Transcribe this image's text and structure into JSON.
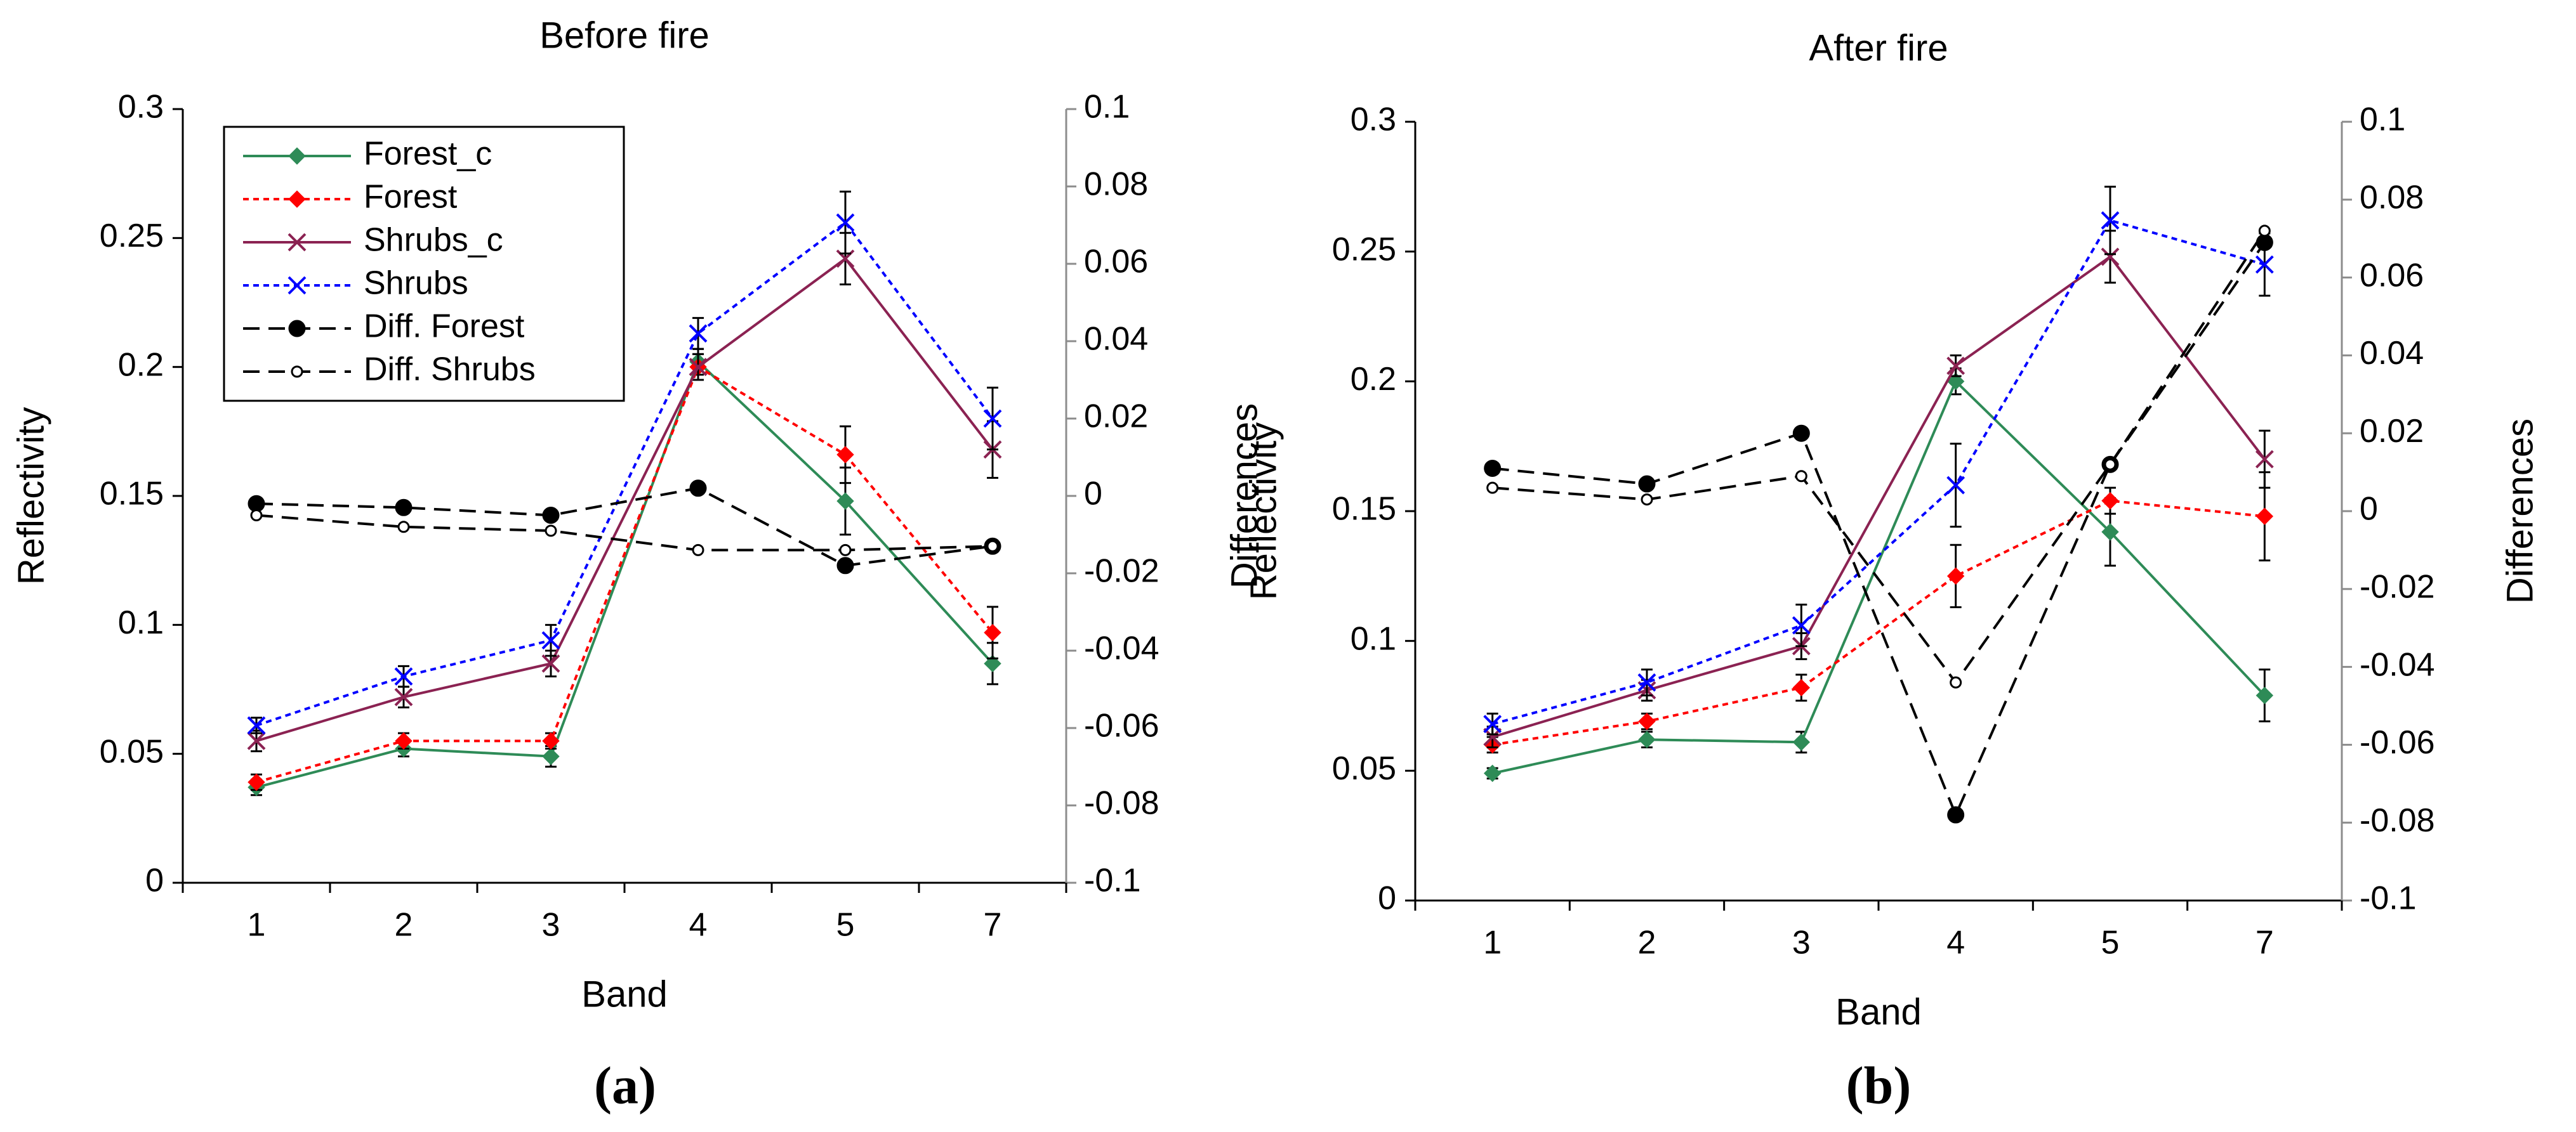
{
  "chart_data": [
    {
      "id": "a",
      "type": "line",
      "title": "Before fire",
      "panel_label": "(a)",
      "xlabel": "Band",
      "ylabel": "Reflectivity",
      "y2label": "Differences",
      "categories": [
        "1",
        "2",
        "3",
        "4",
        "5",
        "7"
      ],
      "ylim": [
        0,
        0.3
      ],
      "yticks": [
        "0",
        "0.05",
        "0.1",
        "0.15",
        "0.2",
        "0.25",
        "0.3"
      ],
      "y2lim": [
        -0.1,
        0.1
      ],
      "y2ticks": [
        "-0.1",
        "-0.08",
        "-0.06",
        "-0.04",
        "-0.02",
        "0",
        "0.02",
        "0.04",
        "0.06",
        "0.08",
        "0.1"
      ],
      "legend": {
        "position": "top-left"
      },
      "series": [
        {
          "name": "Forest_c",
          "axis": "left",
          "color": "#2e8b57",
          "dash": "solid",
          "marker": "diamond",
          "values": [
            0.037,
            0.052,
            0.049,
            0.202,
            0.148,
            0.085
          ],
          "err": [
            0.003,
            0.003,
            0.004,
            0.005,
            0.013,
            0.008
          ]
        },
        {
          "name": "Forest",
          "axis": "left",
          "color": "#ff0000",
          "dash": "dotted",
          "marker": "diamond",
          "values": [
            0.039,
            0.055,
            0.055,
            0.2,
            0.166,
            0.097
          ],
          "err": [
            0.003,
            0.003,
            0.003,
            0.005,
            0.011,
            0.01
          ]
        },
        {
          "name": "Shrubs_c",
          "axis": "left",
          "color": "#8b2252",
          "dash": "solid",
          "marker": "x",
          "values": [
            0.055,
            0.072,
            0.085,
            0.2,
            0.242,
            0.168
          ],
          "err": [
            0.004,
            0.004,
            0.005,
            0.005,
            0.01,
            0.011
          ]
        },
        {
          "name": "Shrubs",
          "axis": "left",
          "color": "#0000ff",
          "dash": "dotted",
          "marker": "x",
          "values": [
            0.061,
            0.08,
            0.094,
            0.213,
            0.256,
            0.18
          ],
          "err": [
            0.003,
            0.004,
            0.006,
            0.006,
            0.012,
            0.012
          ]
        },
        {
          "name": "Diff. Forest",
          "axis": "right",
          "color": "#000000",
          "dash": "dashed",
          "marker": "filled-circle",
          "values": [
            -0.002,
            -0.003,
            -0.005,
            0.002,
            -0.018,
            -0.013
          ]
        },
        {
          "name": "Diff. Shrubs",
          "axis": "right",
          "color": "#000000",
          "dash": "dashed",
          "marker": "open-circle",
          "values": [
            -0.005,
            -0.008,
            -0.009,
            -0.014,
            -0.014,
            -0.013
          ]
        }
      ]
    },
    {
      "id": "b",
      "type": "line",
      "title": "After fire",
      "panel_label": "(b)",
      "xlabel": "Band",
      "ylabel": "Reflectivity",
      "y2label": "Differences",
      "categories": [
        "1",
        "2",
        "3",
        "4",
        "5",
        "7"
      ],
      "ylim": [
        0,
        0.3
      ],
      "yticks": [
        "0",
        "0.05",
        "0.1",
        "0.15",
        "0.2",
        "0.25",
        "0.3"
      ],
      "y2lim": [
        -0.1,
        0.1
      ],
      "y2ticks": [
        "-0.1",
        "-0.08",
        "-0.06",
        "-0.04",
        "-0.02",
        "0",
        "0.02",
        "0.04",
        "0.06",
        "0.08",
        "0.1"
      ],
      "legend": {
        "position": "none"
      },
      "series": [
        {
          "name": "Forest_c",
          "axis": "left",
          "color": "#2e8b57",
          "dash": "solid",
          "marker": "diamond",
          "values": [
            0.049,
            0.062,
            0.061,
            0.2,
            0.142,
            0.079
          ],
          "err": [
            0.002,
            0.003,
            0.004,
            0.005,
            0.013,
            0.01
          ]
        },
        {
          "name": "Forest",
          "axis": "left",
          "color": "#ff0000",
          "dash": "dotted",
          "marker": "diamond",
          "values": [
            0.06,
            0.069,
            0.082,
            0.125,
            0.154,
            0.148
          ],
          "err": [
            0.003,
            0.003,
            0.005,
            0.012,
            0.005,
            0.017
          ]
        },
        {
          "name": "Shrubs_c",
          "axis": "left",
          "color": "#8b2252",
          "dash": "solid",
          "marker": "x",
          "values": [
            0.063,
            0.081,
            0.098,
            0.206,
            0.248,
            0.17
          ],
          "err": [
            0.004,
            0.004,
            0.005,
            0.004,
            0.01,
            0.011
          ]
        },
        {
          "name": "Shrubs",
          "axis": "left",
          "color": "#0000ff",
          "dash": "dotted",
          "marker": "x",
          "values": [
            0.068,
            0.084,
            0.106,
            0.16,
            0.262,
            0.245
          ],
          "err": [
            0.004,
            0.005,
            0.008,
            0.016,
            0.013,
            0.012
          ]
        },
        {
          "name": "Diff. Forest",
          "axis": "right",
          "color": "#000000",
          "dash": "dashed",
          "marker": "filled-circle",
          "values": [
            0.011,
            0.007,
            0.02,
            -0.078,
            0.012,
            0.069
          ]
        },
        {
          "name": "Diff. Shrubs",
          "axis": "right",
          "color": "#000000",
          "dash": "dashed",
          "marker": "open-circle",
          "values": [
            0.006,
            0.003,
            0.009,
            -0.044,
            0.012,
            0.072
          ]
        }
      ]
    }
  ]
}
